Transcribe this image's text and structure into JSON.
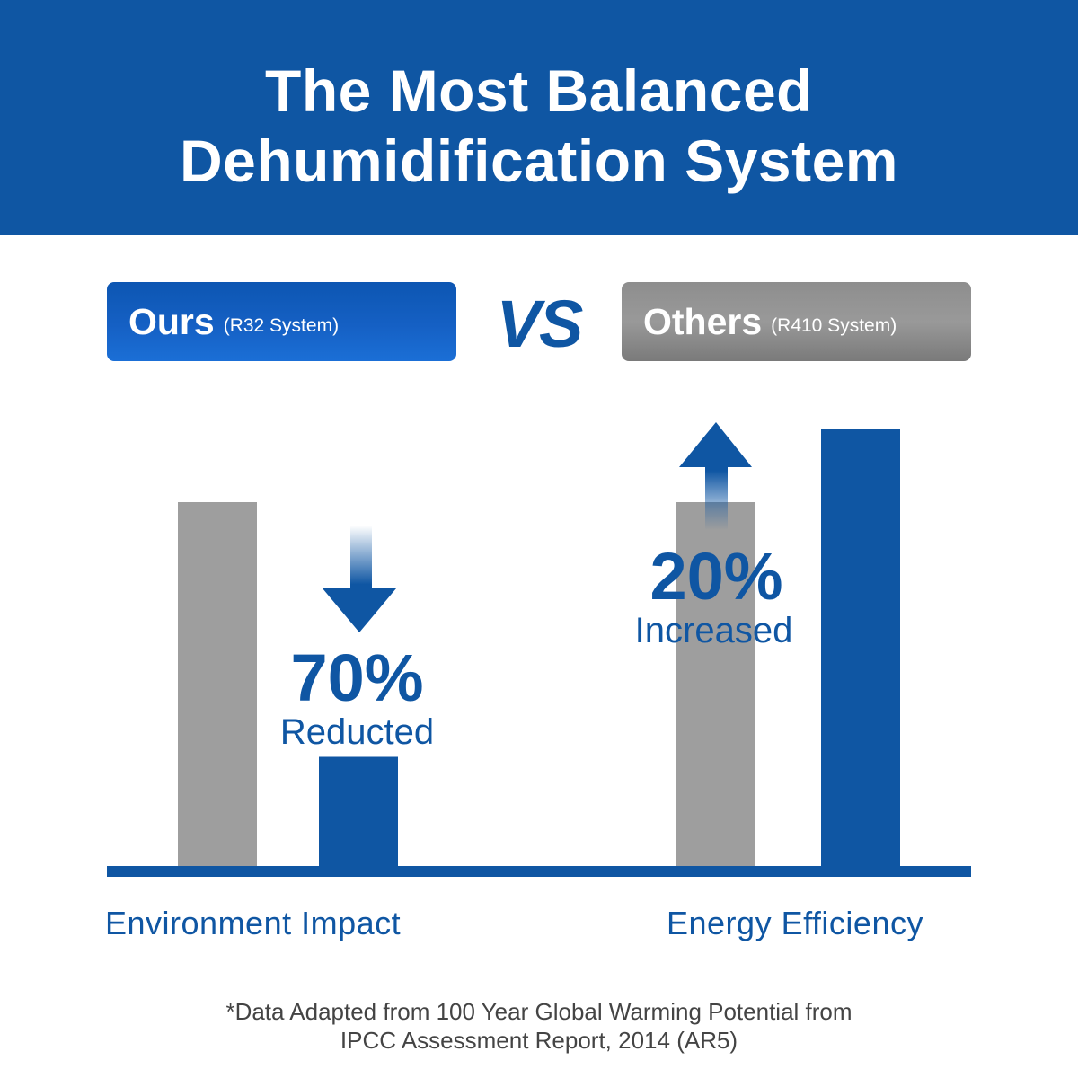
{
  "title": {
    "line1": "The Most Balanced",
    "line2": "Dehumidification System"
  },
  "legend": {
    "ours": {
      "name": "Ours",
      "sub": "(R32 System)"
    },
    "vs": "VS",
    "others": {
      "name": "Others",
      "sub": "(R410 System)"
    }
  },
  "colors": {
    "brand": "#0f56a3",
    "others_bar": "#9e9e9e",
    "white": "#ffffff"
  },
  "chart_data": {
    "type": "bar",
    "title": "The Most Balanced Dehumidification System",
    "categories": [
      "Environment Impact",
      "Energy Efficiency"
    ],
    "series": [
      {
        "name": "Ours (R32 System)",
        "values": [
          30,
          120
        ]
      },
      {
        "name": "Others (R410 System)",
        "values": [
          100,
          100
        ]
      }
    ],
    "bar_order": [
      {
        "category": 0,
        "series": 1
      },
      {
        "category": 0,
        "series": 0
      },
      {
        "category": 1,
        "series": 1
      },
      {
        "category": 1,
        "series": 0
      }
    ],
    "ylim": [
      0,
      120
    ],
    "grid": false,
    "annotations": [
      {
        "category": "Environment Impact",
        "value": "70%",
        "label": "Reducted",
        "direction": "down"
      },
      {
        "category": "Energy Efficiency",
        "value": "20%",
        "label": "Increased",
        "direction": "up"
      }
    ]
  },
  "footnote": {
    "line1": "*Data Adapted from 100 Year Global Warming Potential from",
    "line2": "IPCC Assessment Report, 2014 (AR5)"
  }
}
